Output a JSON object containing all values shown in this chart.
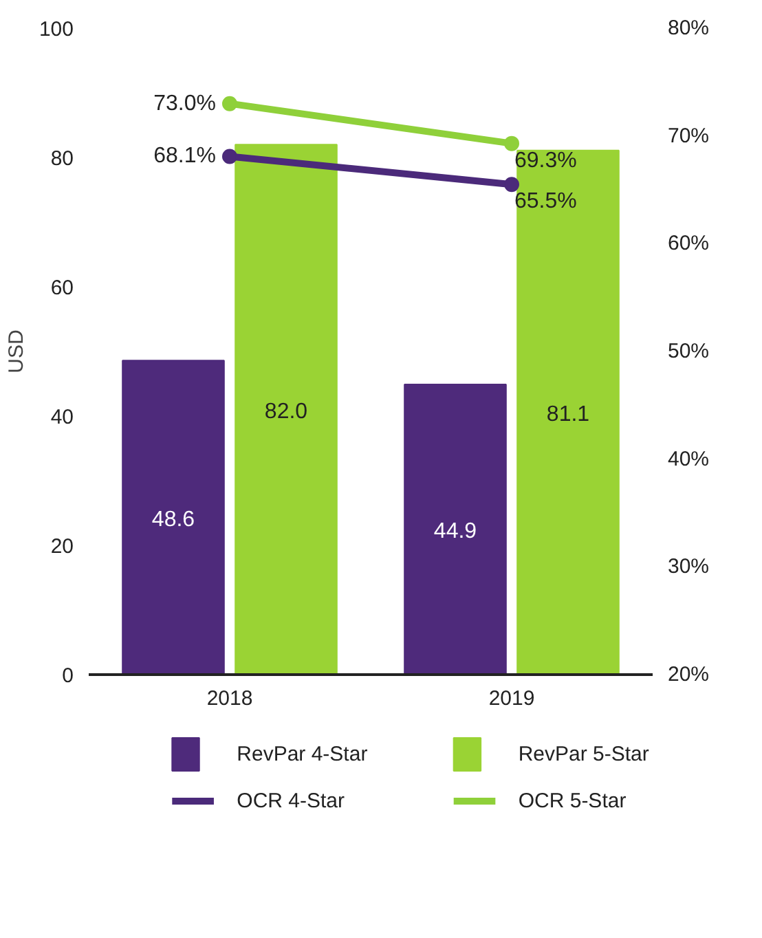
{
  "chart_data": {
    "type": "bar",
    "categories": [
      "2018",
      "2019"
    ],
    "ylabel": "USD",
    "ylim": [
      0,
      100
    ],
    "yticks": [
      0,
      20,
      40,
      60,
      80,
      100
    ],
    "y2lim": [
      20,
      80
    ],
    "y2ticks": [
      {
        "value": 20,
        "label": "20%"
      },
      {
        "value": 30,
        "label": "30%"
      },
      {
        "value": 40,
        "label": "40%"
      },
      {
        "value": 50,
        "label": "50%"
      },
      {
        "value": 60,
        "label": "60%"
      },
      {
        "value": 70,
        "label": "70%"
      },
      {
        "value": 80,
        "label": "80%"
      }
    ],
    "grid": false,
    "legend": "bottom",
    "marker": "circle",
    "series": [
      {
        "name": "RevPar 4-Star",
        "color": "#4e2a7b",
        "values": [
          48.6,
          44.9
        ],
        "value_labels": [
          "48.6",
          "44.9"
        ]
      },
      {
        "name": "RevPar 5-Star",
        "color": "#9ad334",
        "values": [
          82.0,
          81.1
        ],
        "value_labels": [
          "82.0",
          "81.1"
        ]
      },
      {
        "name": "OCR 4-Star",
        "type": "line",
        "axis": "y2",
        "color": "#4b2a7a",
        "values": [
          68.1,
          65.5
        ],
        "value_labels": [
          "68.1%",
          "65.5%"
        ]
      },
      {
        "name": "OCR 5-Star",
        "type": "line",
        "axis": "y2",
        "color": "#8fd03a",
        "values": [
          73.0,
          69.3
        ],
        "value_labels": [
          "73.0%",
          "69.3%"
        ]
      }
    ]
  }
}
